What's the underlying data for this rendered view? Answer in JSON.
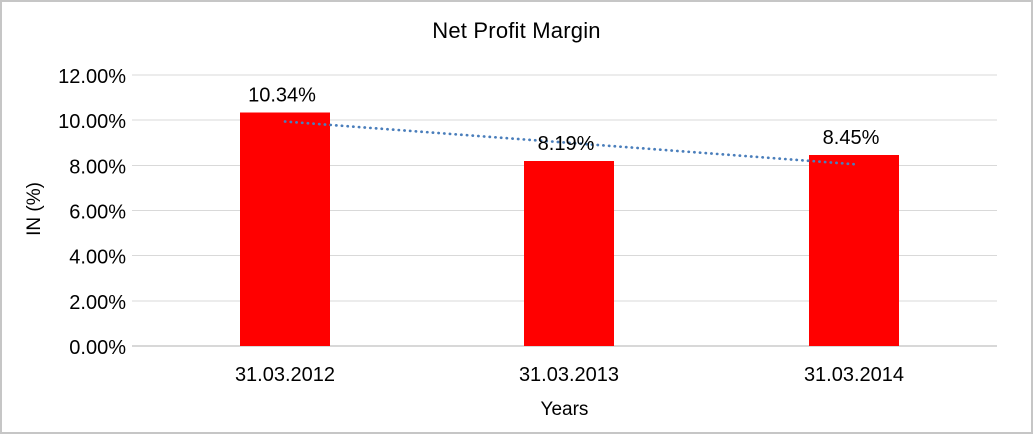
{
  "chart_data": {
    "type": "bar",
    "title": "Net Profit Margin",
    "xlabel": "Years",
    "ylabel": "IN (%)",
    "categories": [
      "31.03.2012",
      "31.03.2013",
      "31.03.2014"
    ],
    "values": [
      10.34,
      8.19,
      8.45
    ],
    "data_labels": [
      "10.34%",
      "8.19%",
      "8.45%"
    ],
    "ylim": [
      0,
      12
    ],
    "ytick_step": 2,
    "ytick_labels": [
      "0.00%",
      "2.00%",
      "4.00%",
      "6.00%",
      "8.00%",
      "10.00%",
      "12.00%"
    ],
    "grid": true,
    "legend": "none",
    "bar_color": "#ff0000",
    "gridline_color": "#d9d9d9",
    "axisline_color": "#b0b0b0",
    "trendline": {
      "style": "dotted",
      "color": "#4a7ebb",
      "start_value": 9.94,
      "end_value": 8.05
    }
  }
}
